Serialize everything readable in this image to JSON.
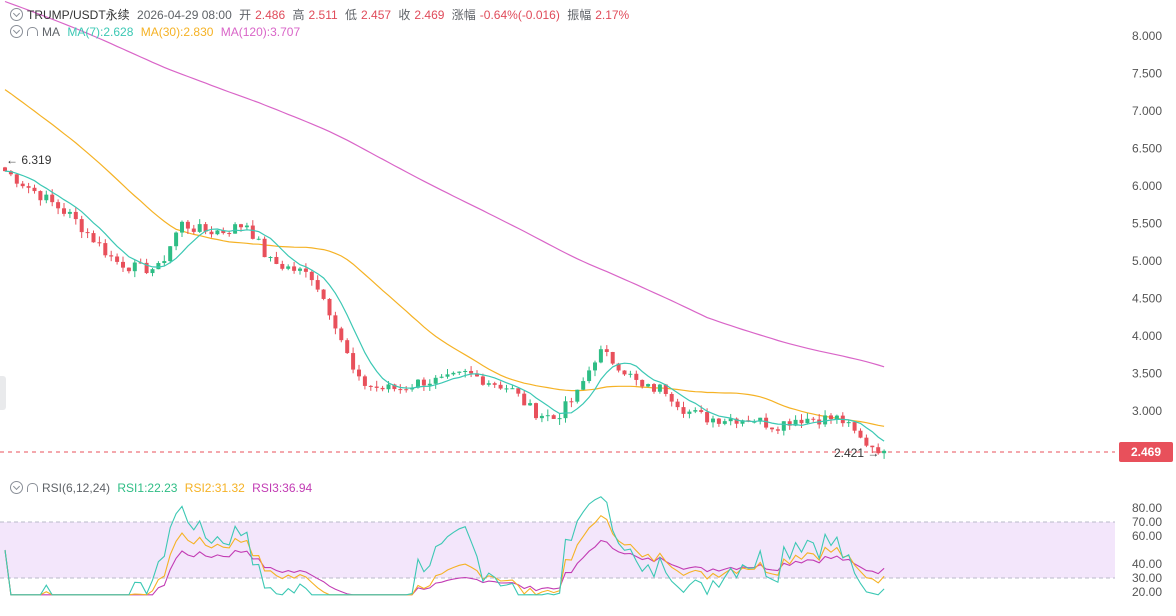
{
  "header": {
    "symbol": "TRUMP/USDT永续",
    "datetime": "2026-04-29 08:00",
    "open_label": "开",
    "open": "2.486",
    "high_label": "高",
    "high": "2.511",
    "low_label": "低",
    "low": "2.457",
    "close_label": "收",
    "close": "2.469",
    "change_label": "涨幅",
    "change": "-0.64%(-0.016)",
    "amplitude_label": "振幅",
    "amplitude": "2.17%"
  },
  "ma_legend": {
    "name": "MA",
    "ma7": "MA(7):2.628",
    "ma30": "MA(30):2.830",
    "ma120": "MA(120):3.707"
  },
  "rsi_legend": {
    "name": "RSI(6,12,24)",
    "rsi1": "RSI1:22.23",
    "rsi2": "RSI2:31.32",
    "rsi3": "RSI3:36.94"
  },
  "price_tag": "2.469",
  "colors": {
    "up": "#2ebd85",
    "down": "#e8505b",
    "ma7": "#3cc8b4",
    "ma30": "#f5b225",
    "ma120": "#d965c8",
    "rsi1": "#3cc8b4",
    "rsi2": "#f5b225",
    "rsi3": "#c23cb4",
    "rsi_band": "#f3e6fb"
  },
  "chart_data": [
    {
      "type": "candlestick",
      "title": "TRUMP/USDT永续",
      "ylim": [
        2.3,
        8.1
      ],
      "y_ticks": [
        "8.000",
        "7.500",
        "7.000",
        "6.500",
        "6.000",
        "5.500",
        "5.000",
        "4.500",
        "4.000",
        "3.500",
        "3.000"
      ],
      "candle_count": 150,
      "highest_marker": "6.319",
      "lowest_marker": "2.421",
      "last_price": 2.469,
      "key_closes": [
        6.2,
        6.0,
        5.8,
        5.6,
        5.3,
        5.0,
        4.9,
        4.9,
        5.5,
        5.4,
        5.4,
        5.5,
        5.0,
        4.9,
        4.8,
        4.2,
        3.4,
        3.3,
        3.3,
        3.4,
        3.4,
        3.5,
        3.4,
        3.3,
        3.0,
        2.9,
        3.2,
        3.8,
        3.6,
        3.3,
        3.3,
        3.0,
        2.9,
        2.9,
        2.9,
        2.8,
        2.9,
        2.9,
        2.9,
        2.6,
        2.47
      ],
      "series": [
        {
          "name": "MA(7)",
          "last": 2.628
        },
        {
          "name": "MA(30)",
          "last": 2.83
        },
        {
          "name": "MA(120)",
          "last": 3.707
        }
      ]
    },
    {
      "type": "line",
      "title": "RSI(6,12,24)",
      "ylim": [
        18,
        88
      ],
      "y_ticks": [
        "80.00",
        "70.00",
        "60.00",
        "40.00",
        "30.00",
        "20.00"
      ],
      "band": [
        30,
        70
      ],
      "series": [
        {
          "name": "RSI1",
          "last": 22.23
        },
        {
          "name": "RSI2",
          "last": 31.32
        },
        {
          "name": "RSI3",
          "last": 36.94
        }
      ]
    }
  ]
}
